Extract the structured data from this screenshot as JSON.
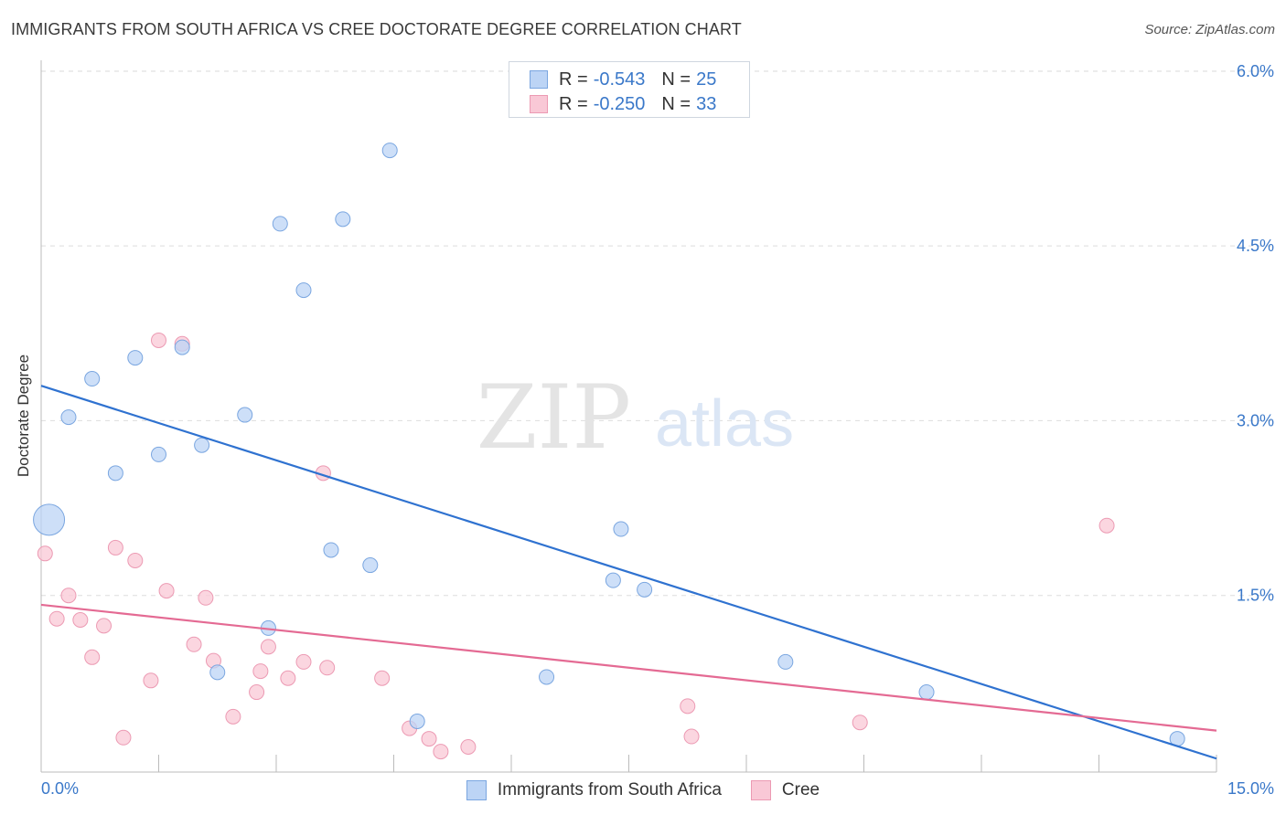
{
  "title": "IMMIGRANTS FROM SOUTH AFRICA VS CREE DOCTORATE DEGREE CORRELATION CHART",
  "source": "Source: ZipAtlas.com",
  "watermark": {
    "part1": "ZIP",
    "part2": "atlas"
  },
  "colors": {
    "blue_fill": "#bcd4f5",
    "blue_stroke": "#7aa6e0",
    "blue_line": "#2f72d0",
    "pink_fill": "#f9c8d6",
    "pink_stroke": "#ec9ab3",
    "pink_line": "#e46a93",
    "tick_text": "#3a78c9",
    "grid": "#dddddd"
  },
  "legend": {
    "rows": [
      {
        "r_label": "R =",
        "r_value": "-0.543",
        "n_label": "N =",
        "n_value": "25"
      },
      {
        "r_label": "R =",
        "r_value": "-0.250",
        "n_label": "N =",
        "n_value": "33"
      }
    ]
  },
  "chart_data": {
    "type": "scatter",
    "title": "IMMIGRANTS FROM SOUTH AFRICA VS CREE DOCTORATE DEGREE CORRELATION CHART",
    "xlabel": "",
    "ylabel": "Doctorate Degree",
    "xlim": [
      0,
      15
    ],
    "ylim": [
      0,
      6.3
    ],
    "x_tick_labels": [
      "0.0%",
      "15.0%"
    ],
    "y_ticks": [
      1.5,
      3.0,
      4.5,
      6.0
    ],
    "y_tick_labels": [
      "1.5%",
      "3.0%",
      "4.5%",
      "6.0%"
    ],
    "grid": true,
    "series": [
      {
        "name": "Immigrants from South Africa",
        "color": "blue",
        "r": -0.543,
        "n": 25,
        "trend": {
          "x": [
            0,
            15
          ],
          "y": [
            3.3,
            0.1
          ]
        },
        "points": [
          {
            "x": 0.1,
            "y": 2.15,
            "big": true
          },
          {
            "x": 0.35,
            "y": 3.03
          },
          {
            "x": 0.65,
            "y": 3.36
          },
          {
            "x": 0.95,
            "y": 2.55
          },
          {
            "x": 1.2,
            "y": 3.54
          },
          {
            "x": 1.5,
            "y": 2.71
          },
          {
            "x": 1.8,
            "y": 3.63
          },
          {
            "x": 2.05,
            "y": 2.79
          },
          {
            "x": 2.25,
            "y": 0.84
          },
          {
            "x": 2.6,
            "y": 3.05
          },
          {
            "x": 2.9,
            "y": 1.22
          },
          {
            "x": 3.05,
            "y": 4.69
          },
          {
            "x": 3.35,
            "y": 4.12
          },
          {
            "x": 3.7,
            "y": 1.89
          },
          {
            "x": 3.85,
            "y": 4.73
          },
          {
            "x": 4.2,
            "y": 1.76
          },
          {
            "x": 4.45,
            "y": 5.32
          },
          {
            "x": 4.8,
            "y": 0.42
          },
          {
            "x": 6.45,
            "y": 0.8
          },
          {
            "x": 7.3,
            "y": 1.63
          },
          {
            "x": 7.4,
            "y": 2.07
          },
          {
            "x": 7.7,
            "y": 1.55
          },
          {
            "x": 9.5,
            "y": 0.93
          },
          {
            "x": 11.3,
            "y": 0.67
          },
          {
            "x": 14.5,
            "y": 0.27
          }
        ]
      },
      {
        "name": "Cree",
        "color": "pink",
        "r": -0.25,
        "n": 33,
        "trend": {
          "x": [
            0,
            15
          ],
          "y": [
            1.42,
            0.34
          ]
        },
        "points": [
          {
            "x": 0.05,
            "y": 1.86
          },
          {
            "x": 0.2,
            "y": 1.3
          },
          {
            "x": 0.35,
            "y": 1.5
          },
          {
            "x": 0.5,
            "y": 1.29
          },
          {
            "x": 0.65,
            "y": 0.97
          },
          {
            "x": 0.8,
            "y": 1.24
          },
          {
            "x": 0.95,
            "y": 1.91
          },
          {
            "x": 1.05,
            "y": 0.28
          },
          {
            "x": 1.2,
            "y": 1.8
          },
          {
            "x": 1.4,
            "y": 0.77
          },
          {
            "x": 1.5,
            "y": 3.69
          },
          {
            "x": 1.6,
            "y": 1.54
          },
          {
            "x": 1.8,
            "y": 3.66
          },
          {
            "x": 1.95,
            "y": 1.08
          },
          {
            "x": 2.1,
            "y": 1.48
          },
          {
            "x": 2.2,
            "y": 0.94
          },
          {
            "x": 2.45,
            "y": 0.46
          },
          {
            "x": 2.75,
            "y": 0.67
          },
          {
            "x": 2.8,
            "y": 0.85
          },
          {
            "x": 2.9,
            "y": 1.06
          },
          {
            "x": 3.15,
            "y": 0.79
          },
          {
            "x": 3.35,
            "y": 0.93
          },
          {
            "x": 3.6,
            "y": 2.55
          },
          {
            "x": 3.65,
            "y": 0.88
          },
          {
            "x": 4.35,
            "y": 0.79
          },
          {
            "x": 4.7,
            "y": 0.36
          },
          {
            "x": 4.95,
            "y": 0.27
          },
          {
            "x": 5.1,
            "y": 0.16
          },
          {
            "x": 5.45,
            "y": 0.2
          },
          {
            "x": 8.25,
            "y": 0.55
          },
          {
            "x": 8.3,
            "y": 0.29
          },
          {
            "x": 10.45,
            "y": 0.41
          },
          {
            "x": 13.6,
            "y": 2.1
          }
        ]
      }
    ]
  }
}
